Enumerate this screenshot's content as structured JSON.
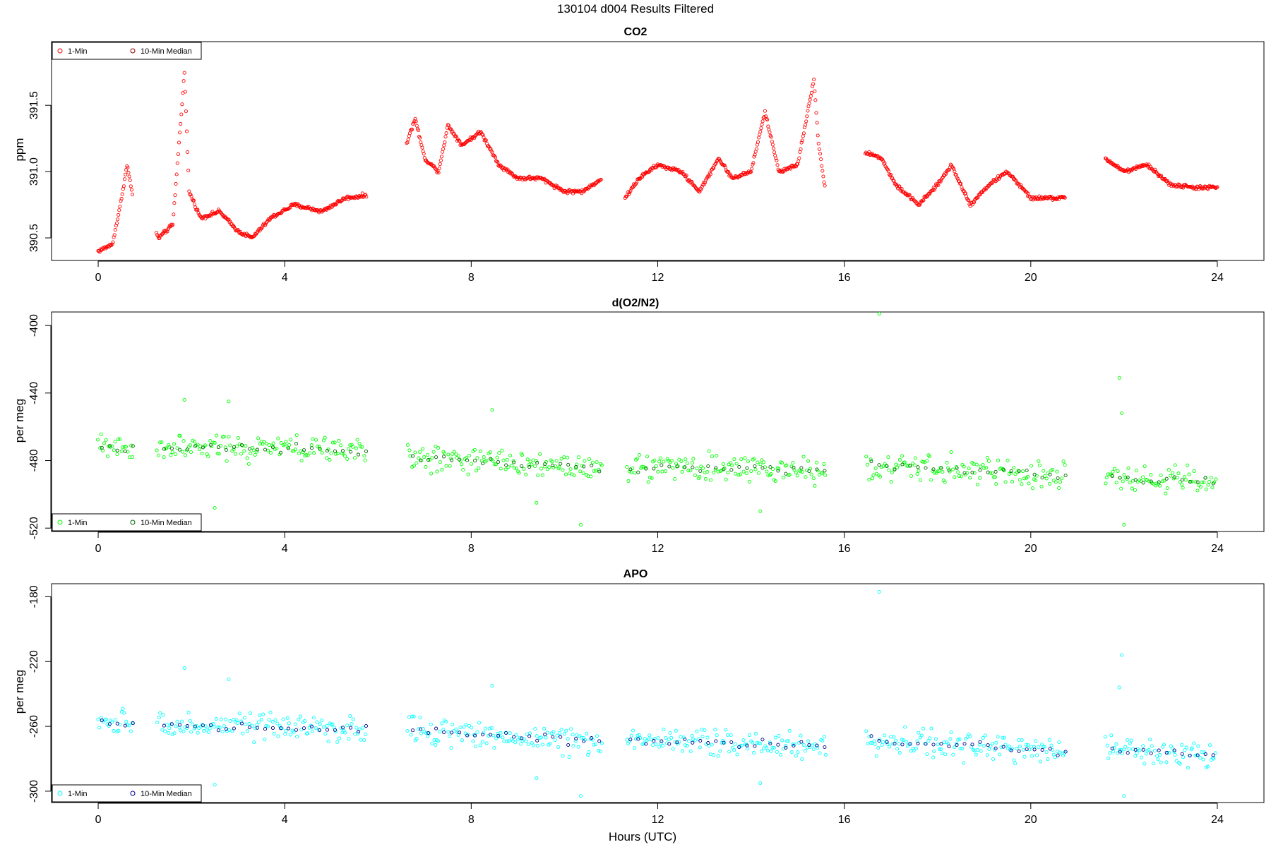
{
  "figure": {
    "title": "130104   d004   Results Filtered",
    "xlabel": "Hours (UTC)"
  },
  "legend_labels": {
    "one_min": "1-Min",
    "median": "10-Min Median"
  },
  "chart_data": [
    {
      "type": "scatter",
      "title": "CO2",
      "ylabel": "ppm",
      "xlim": [
        -1.0,
        25.0
      ],
      "ylim": [
        390.33,
        391.98
      ],
      "xticks": [
        0,
        4,
        8,
        12,
        16,
        20,
        24
      ],
      "yticks": [
        390.5,
        391.0,
        391.5
      ],
      "ytick_labels": [
        "390.5",
        "391.0",
        "391.5"
      ],
      "legend_position": "top-left",
      "gaps": [
        [
          0.75,
          1.25
        ],
        [
          5.75,
          6.6
        ],
        [
          10.8,
          11.3
        ],
        [
          15.6,
          16.45
        ],
        [
          20.75,
          21.6
        ]
      ],
      "series": [
        {
          "name": "1-Min",
          "color": "#ff0000",
          "kind": "dense",
          "noise": 0.012,
          "anchors": [
            [
              0.0,
              390.4
            ],
            [
              0.3,
              390.45
            ],
            [
              0.45,
              390.7
            ],
            [
              0.62,
              391.05
            ],
            [
              0.75,
              390.8
            ],
            [
              1.3,
              390.5
            ],
            [
              1.6,
              390.6
            ],
            [
              1.85,
              391.75
            ],
            [
              1.95,
              390.85
            ],
            [
              2.2,
              390.65
            ],
            [
              2.6,
              390.7
            ],
            [
              3.0,
              390.55
            ],
            [
              3.3,
              390.5
            ],
            [
              3.7,
              390.65
            ],
            [
              4.2,
              390.75
            ],
            [
              4.8,
              390.7
            ],
            [
              5.3,
              390.8
            ],
            [
              5.75,
              390.82
            ],
            [
              6.6,
              391.2
            ],
            [
              6.8,
              391.4
            ],
            [
              7.0,
              391.1
            ],
            [
              7.3,
              391.0
            ],
            [
              7.5,
              391.35
            ],
            [
              7.8,
              391.2
            ],
            [
              8.2,
              391.3
            ],
            [
              8.6,
              391.05
            ],
            [
              9.0,
              390.95
            ],
            [
              9.5,
              390.95
            ],
            [
              10.0,
              390.85
            ],
            [
              10.4,
              390.85
            ],
            [
              10.8,
              390.95
            ],
            [
              11.3,
              390.8
            ],
            [
              11.6,
              390.95
            ],
            [
              12.0,
              391.05
            ],
            [
              12.5,
              391.0
            ],
            [
              12.9,
              390.85
            ],
            [
              13.3,
              391.1
            ],
            [
              13.6,
              390.95
            ],
            [
              14.0,
              391.0
            ],
            [
              14.3,
              391.45
            ],
            [
              14.6,
              391.0
            ],
            [
              15.0,
              391.05
            ],
            [
              15.35,
              391.7
            ],
            [
              15.45,
              391.2
            ],
            [
              15.6,
              390.85
            ],
            [
              16.45,
              391.15
            ],
            [
              16.8,
              391.1
            ],
            [
              17.1,
              390.9
            ],
            [
              17.6,
              390.75
            ],
            [
              18.0,
              390.9
            ],
            [
              18.3,
              391.05
            ],
            [
              18.7,
              390.75
            ],
            [
              19.1,
              390.9
            ],
            [
              19.5,
              391.0
            ],
            [
              20.0,
              390.8
            ],
            [
              20.75,
              390.8
            ],
            [
              21.6,
              391.1
            ],
            [
              22.0,
              391.0
            ],
            [
              22.5,
              391.05
            ],
            [
              23.0,
              390.9
            ],
            [
              23.5,
              390.88
            ],
            [
              24.0,
              390.88
            ]
          ]
        },
        {
          "name": "10-Min Median",
          "color": "#8b0000",
          "kind": "sparse",
          "points": []
        }
      ]
    },
    {
      "type": "scatter",
      "title": "d(O2/N2)",
      "ylabel": "per meg",
      "xlim": [
        -1.0,
        25.0
      ],
      "ylim": [
        -522,
        -392
      ],
      "xticks": [
        0,
        4,
        8,
        12,
        16,
        20,
        24
      ],
      "yticks": [
        -400,
        -440,
        -480,
        -520
      ],
      "ytick_labels": [
        "-400",
        "-440",
        "-480",
        "-520"
      ],
      "legend_position": "bottom-left",
      "gaps": [
        [
          0.75,
          1.25
        ],
        [
          5.75,
          6.6
        ],
        [
          10.8,
          11.3
        ],
        [
          15.6,
          16.45
        ],
        [
          20.75,
          21.6
        ]
      ],
      "series": [
        {
          "name": "1-Min",
          "color": "#00ff00",
          "kind": "scattered",
          "noise": 7,
          "anchors": [
            [
              0,
              -472
            ],
            [
              5.75,
              -474
            ],
            [
              6.6,
              -478
            ],
            [
              10.8,
              -484
            ],
            [
              11.3,
              -484
            ],
            [
              15.6,
              -486
            ],
            [
              16.45,
              -483
            ],
            [
              20.75,
              -489
            ],
            [
              21.6,
              -490
            ],
            [
              24,
              -492
            ]
          ],
          "outliers": [
            [
              16.75,
              -393
            ],
            [
              21.9,
              -431
            ],
            [
              21.95,
              -452
            ],
            [
              1.85,
              -444
            ],
            [
              2.8,
              -445
            ],
            [
              8.45,
              -450
            ],
            [
              2.5,
              -508
            ],
            [
              10.35,
              -518
            ],
            [
              22.0,
              -518
            ],
            [
              14.2,
              -510
            ],
            [
              9.4,
              -505
            ]
          ]
        },
        {
          "name": "10-Min Median",
          "color": "#006400",
          "kind": "median",
          "anchors": [
            [
              0,
              -472
            ],
            [
              5.75,
              -474
            ],
            [
              6.6,
              -478
            ],
            [
              10.8,
              -484
            ],
            [
              11.3,
              -484
            ],
            [
              15.6,
              -486
            ],
            [
              16.45,
              -483
            ],
            [
              20.75,
              -489
            ],
            [
              21.6,
              -490
            ],
            [
              24,
              -492
            ]
          ]
        }
      ]
    },
    {
      "type": "scatter",
      "title": "APO",
      "ylabel": "per meg",
      "xlim": [
        -1.0,
        25.0
      ],
      "ylim": [
        -307,
        -172
      ],
      "xticks": [
        0,
        4,
        8,
        12,
        16,
        20,
        24
      ],
      "yticks": [
        -180,
        -220,
        -260,
        -300
      ],
      "ytick_labels": [
        "-180",
        "-220",
        "-260",
        "-300"
      ],
      "legend_position": "bottom-left",
      "gaps": [
        [
          0.75,
          1.25
        ],
        [
          5.75,
          6.6
        ],
        [
          10.8,
          11.3
        ],
        [
          15.6,
          16.45
        ],
        [
          20.75,
          21.6
        ]
      ],
      "series": [
        {
          "name": "1-Min",
          "color": "#00ffff",
          "kind": "scattered",
          "noise": 7,
          "anchors": [
            [
              0,
              -258
            ],
            [
              5.75,
              -262
            ],
            [
              6.6,
              -262
            ],
            [
              10.8,
              -270
            ],
            [
              11.3,
              -268
            ],
            [
              15.6,
              -272
            ],
            [
              16.45,
              -268
            ],
            [
              20.75,
              -276
            ],
            [
              21.6,
              -274
            ],
            [
              24,
              -278
            ]
          ],
          "outliers": [
            [
              16.75,
              -177
            ],
            [
              21.95,
              -216
            ],
            [
              21.9,
              -236
            ],
            [
              1.85,
              -224
            ],
            [
              2.8,
              -231
            ],
            [
              8.45,
              -235
            ],
            [
              2.5,
              -296
            ],
            [
              10.35,
              -303
            ],
            [
              22.0,
              -303
            ],
            [
              14.2,
              -295
            ],
            [
              9.4,
              -292
            ]
          ]
        },
        {
          "name": "10-Min Median",
          "color": "#00008b",
          "kind": "median",
          "anchors": [
            [
              0,
              -258
            ],
            [
              5.75,
              -262
            ],
            [
              6.6,
              -262
            ],
            [
              10.8,
              -270
            ],
            [
              11.3,
              -268
            ],
            [
              15.6,
              -272
            ],
            [
              16.45,
              -268
            ],
            [
              20.75,
              -276
            ],
            [
              21.6,
              -274
            ],
            [
              24,
              -278
            ]
          ]
        }
      ]
    }
  ]
}
